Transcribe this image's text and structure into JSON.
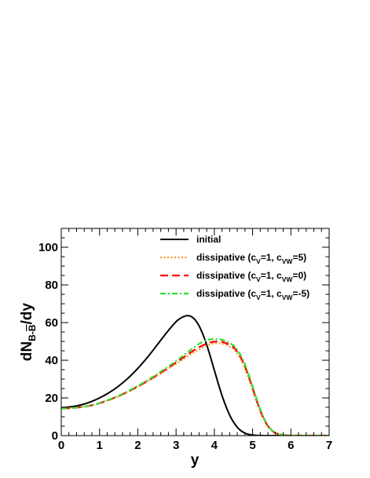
{
  "chart_data": {
    "type": "line",
    "xlabel": "y",
    "ylabel": {
      "main": "dN",
      "sub": "B-",
      "sub_overbar": "B",
      "tail": "/dy"
    },
    "xlim": [
      0,
      7
    ],
    "ylim": [
      0,
      110
    ],
    "xticks": [
      "0",
      "1",
      "2",
      "3",
      "4",
      "5",
      "6",
      "7"
    ],
    "yticks": [
      "0",
      "20",
      "40",
      "60",
      "80",
      "100"
    ],
    "grid": false,
    "legend_position": "top-right",
    "series": [
      {
        "name": "initial",
        "legend": {
          "main": "initial",
          "sub1": "",
          "mid": "",
          "sub2": "",
          "tail": ""
        },
        "color": "#000000",
        "style": "solid",
        "x": [
          0,
          0.25,
          0.5,
          0.75,
          1.0,
          1.25,
          1.5,
          1.75,
          2.0,
          2.25,
          2.5,
          2.75,
          3.0,
          3.1,
          3.2,
          3.3,
          3.4,
          3.5,
          3.6,
          3.7,
          3.8,
          3.9,
          4.0,
          4.2,
          4.4,
          4.6,
          4.8,
          5.0,
          5.2,
          5.5,
          6.0,
          7.0
        ],
        "y": [
          14.8,
          15.3,
          16.2,
          17.8,
          20.0,
          22.8,
          26.3,
          30.6,
          35.7,
          41.5,
          48.0,
          54.6,
          60.5,
          62.1,
          63.2,
          63.7,
          63.2,
          61.4,
          58.3,
          53.8,
          48.2,
          41.7,
          34.7,
          21.3,
          10.9,
          4.4,
          1.3,
          0.3,
          0.05,
          0.0,
          0.0,
          0.0
        ]
      },
      {
        "name": "dissipative (cv=1, cvw=5)",
        "legend": {
          "main": "dissipative (c",
          "sub1": "V",
          "mid": "=1, c",
          "sub2": "VW",
          "tail": "=5)"
        },
        "color": "#ff9933",
        "style": "dotted",
        "x": [
          0,
          0.25,
          0.5,
          0.75,
          1.0,
          1.5,
          2.0,
          2.5,
          3.0,
          3.25,
          3.5,
          3.75,
          4.0,
          4.25,
          4.5,
          4.6,
          4.7,
          4.8,
          4.9,
          5.0,
          5.1,
          5.2,
          5.3,
          5.4,
          5.5,
          5.6,
          5.8,
          6.0,
          6.5,
          7.0
        ],
        "y": [
          14.4,
          14.6,
          15.1,
          15.9,
          17.2,
          20.9,
          25.9,
          31.7,
          38.1,
          41.4,
          44.6,
          47.3,
          48.9,
          48.6,
          45.9,
          43.5,
          40.0,
          35.5,
          30.1,
          24.2,
          18.3,
          12.8,
          8.3,
          4.9,
          2.7,
          1.3,
          0.3,
          0.05,
          0.0,
          0.0
        ]
      },
      {
        "name": "dissipative (cv=1, cvw=0)",
        "legend": {
          "main": "dissipative (c",
          "sub1": "V",
          "mid": "=1, c",
          "sub2": "VW",
          "tail": "=0)"
        },
        "color": "#ff0000",
        "style": "dashed",
        "x": [
          0,
          0.25,
          0.5,
          0.75,
          1.0,
          1.5,
          2.0,
          2.5,
          3.0,
          3.25,
          3.5,
          3.75,
          4.0,
          4.25,
          4.5,
          4.6,
          4.7,
          4.8,
          4.9,
          5.0,
          5.1,
          5.2,
          5.3,
          5.4,
          5.5,
          5.6,
          5.8,
          6.0,
          6.5,
          7.0
        ],
        "y": [
          14.4,
          14.6,
          15.1,
          15.9,
          17.2,
          21.0,
          26.1,
          32.1,
          38.8,
          42.3,
          45.7,
          48.4,
          49.9,
          49.5,
          46.9,
          44.5,
          41.2,
          36.8,
          31.3,
          25.2,
          19.0,
          13.3,
          8.6,
          5.1,
          2.8,
          1.4,
          0.3,
          0.05,
          0.0,
          0.0
        ]
      },
      {
        "name": "dissipative (cv=1, cvw=-5)",
        "legend": {
          "main": "dissipative (c",
          "sub1": "V",
          "mid": "=1, c",
          "sub2": "VW",
          "tail": "=-5)"
        },
        "color": "#33dd33",
        "style": "dashdot",
        "x": [
          0,
          0.25,
          0.5,
          0.75,
          1.0,
          1.5,
          2.0,
          2.5,
          3.0,
          3.25,
          3.5,
          3.75,
          4.0,
          4.25,
          4.5,
          4.6,
          4.7,
          4.8,
          4.9,
          5.0,
          5.1,
          5.2,
          5.3,
          5.4,
          5.5,
          5.6,
          5.8,
          6.0,
          6.5,
          7.0
        ],
        "y": [
          14.4,
          14.6,
          15.1,
          15.9,
          17.3,
          21.2,
          26.4,
          32.6,
          39.6,
          43.5,
          47.3,
          50.3,
          51.3,
          50.6,
          47.9,
          45.5,
          42.2,
          37.8,
          32.3,
          26.2,
          19.9,
          14.0,
          9.1,
          5.4,
          3.0,
          1.5,
          0.35,
          0.05,
          0.0,
          0.0
        ]
      }
    ]
  }
}
